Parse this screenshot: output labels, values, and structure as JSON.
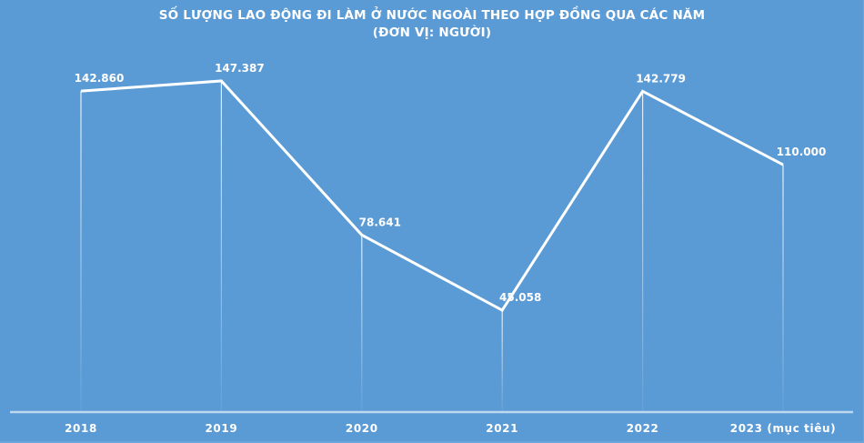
{
  "chart_data": {
    "type": "line",
    "title": "SỐ LƯỢNG LAO ĐỘNG ĐI LÀM Ở NƯỚC NGOÀI THEO HỢP ĐỒNG QUA CÁC NĂM",
    "subtitle": "(ĐƠN VỊ: NGƯỜI)",
    "xlabel": "",
    "ylabel": "",
    "categories": [
      "2018",
      "2019",
      "2020",
      "2021",
      "2022",
      "2023 (mục tiêu)"
    ],
    "series": [
      {
        "name": "Số lượng lao động",
        "values": [
          142860,
          147387,
          78641,
          45058,
          142779,
          110000
        ],
        "labels": [
          "142.860",
          "147.387",
          "78.641",
          "45.058",
          "142.779",
          "110.000"
        ]
      }
    ],
    "ylim": [
      0,
      160000
    ],
    "grid": false,
    "drop_lines": true,
    "legend": "none",
    "colors": {
      "background": "#5B9BD5",
      "line": "#FFFFFF",
      "text": "#FFFFFF"
    }
  },
  "title_line1": "SỐ LƯỢNG LAO ĐỘNG ĐI LÀM Ở NƯỚC NGOÀI THEO HỢP ĐỒNG QUA CÁC NĂM",
  "title_line2": "(ĐƠN VỊ: NGƯỜI)"
}
